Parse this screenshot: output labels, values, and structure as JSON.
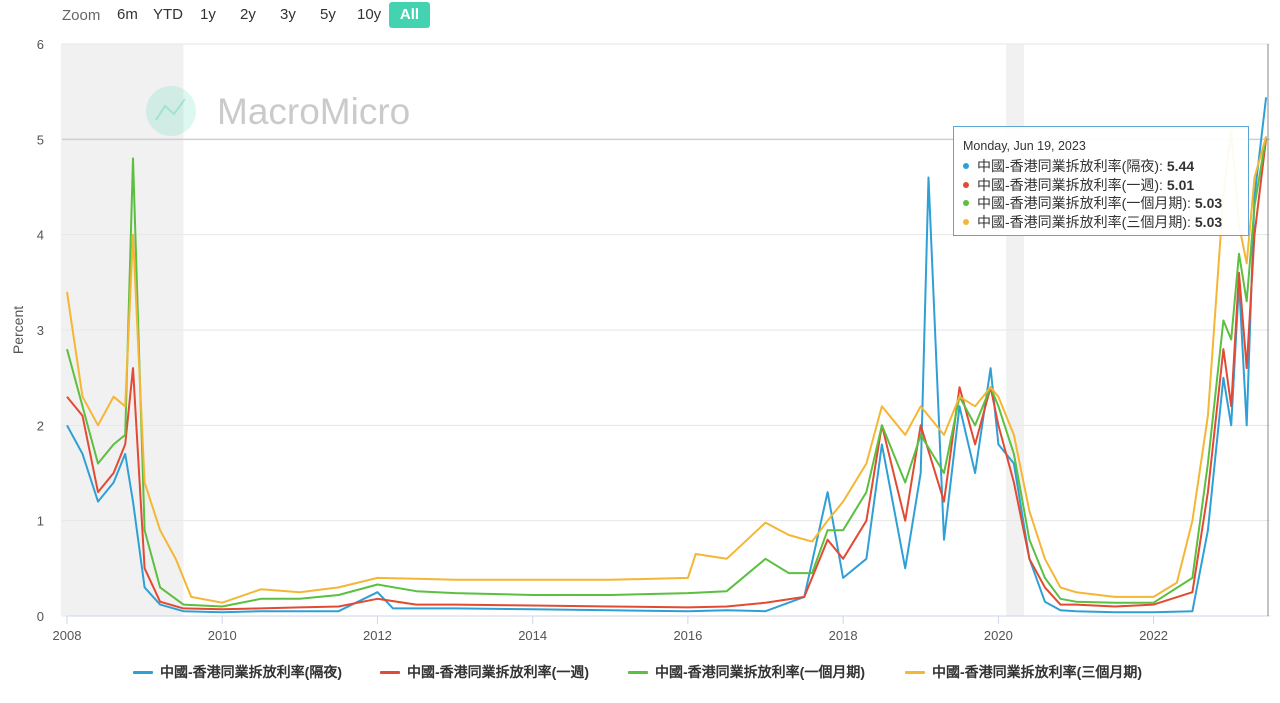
{
  "zoom": {
    "label": "Zoom",
    "buttons": [
      "6m",
      "YTD",
      "1y",
      "2y",
      "3y",
      "5y",
      "10y",
      "All"
    ],
    "active": "All",
    "active_color": "#44d3b0"
  },
  "watermark": "MacroMicro",
  "tooltip": {
    "date": "Monday, Jun 19, 2023",
    "rows": [
      {
        "label": "中國-香港同業拆放利率(隔夜):",
        "value": "5.44"
      },
      {
        "label": "中國-香港同業拆放利率(一週):",
        "value": "5.01"
      },
      {
        "label": "中國-香港同業拆放利率(一個月期):",
        "value": "5.03"
      },
      {
        "label": "中國-香港同業拆放利率(三個月期):",
        "value": "5.03"
      }
    ]
  },
  "chart_data": {
    "type": "line",
    "ylabel": "Percent",
    "ylim": [
      0,
      6
    ],
    "yticks": [
      "0",
      "1",
      "2",
      "3",
      "4",
      "5",
      "6"
    ],
    "xlim": [
      2008,
      2023.5
    ],
    "xticks": [
      "2008",
      "2010",
      "2012",
      "2014",
      "2016",
      "2018",
      "2020",
      "2022"
    ],
    "grid": true,
    "legend_position": "bottom",
    "recession_bands": [
      [
        2007.92,
        2009.5
      ],
      [
        2020.1,
        2020.33
      ]
    ],
    "reference_line": 5,
    "series": [
      {
        "name": "中國-香港同業拆放利率(隔夜)",
        "color": "#2fa0d6",
        "points": [
          [
            2008.0,
            2.0
          ],
          [
            2008.2,
            1.7
          ],
          [
            2008.4,
            1.2
          ],
          [
            2008.6,
            1.4
          ],
          [
            2008.75,
            1.7
          ],
          [
            2008.85,
            1.2
          ],
          [
            2009.0,
            0.3
          ],
          [
            2009.2,
            0.12
          ],
          [
            2009.5,
            0.05
          ],
          [
            2010.0,
            0.04
          ],
          [
            2010.5,
            0.05
          ],
          [
            2011.0,
            0.05
          ],
          [
            2011.5,
            0.05
          ],
          [
            2012.0,
            0.25
          ],
          [
            2012.2,
            0.08
          ],
          [
            2013.0,
            0.08
          ],
          [
            2014.0,
            0.07
          ],
          [
            2015.0,
            0.06
          ],
          [
            2016.0,
            0.05
          ],
          [
            2016.5,
            0.06
          ],
          [
            2017.0,
            0.05
          ],
          [
            2017.5,
            0.2
          ],
          [
            2017.8,
            1.3
          ],
          [
            2018.0,
            0.4
          ],
          [
            2018.3,
            0.6
          ],
          [
            2018.5,
            1.8
          ],
          [
            2018.8,
            0.5
          ],
          [
            2019.0,
            1.5
          ],
          [
            2019.1,
            4.6
          ],
          [
            2019.3,
            0.8
          ],
          [
            2019.5,
            2.2
          ],
          [
            2019.7,
            1.5
          ],
          [
            2019.9,
            2.6
          ],
          [
            2020.0,
            1.8
          ],
          [
            2020.2,
            1.6
          ],
          [
            2020.4,
            0.6
          ],
          [
            2020.6,
            0.15
          ],
          [
            2020.8,
            0.06
          ],
          [
            2021.0,
            0.05
          ],
          [
            2021.5,
            0.04
          ],
          [
            2022.0,
            0.04
          ],
          [
            2022.5,
            0.05
          ],
          [
            2022.7,
            0.9
          ],
          [
            2022.9,
            2.5
          ],
          [
            2023.0,
            2.0
          ],
          [
            2023.1,
            3.5
          ],
          [
            2023.2,
            2.0
          ],
          [
            2023.3,
            4.4
          ],
          [
            2023.45,
            5.44
          ]
        ]
      },
      {
        "name": "中國-香港同業拆放利率(一週)",
        "color": "#e24a33",
        "points": [
          [
            2008.0,
            2.3
          ],
          [
            2008.2,
            2.1
          ],
          [
            2008.4,
            1.3
          ],
          [
            2008.6,
            1.5
          ],
          [
            2008.75,
            1.8
          ],
          [
            2008.85,
            2.6
          ],
          [
            2009.0,
            0.5
          ],
          [
            2009.2,
            0.15
          ],
          [
            2009.5,
            0.08
          ],
          [
            2010.0,
            0.07
          ],
          [
            2010.5,
            0.08
          ],
          [
            2011.0,
            0.09
          ],
          [
            2011.5,
            0.1
          ],
          [
            2012.0,
            0.18
          ],
          [
            2012.5,
            0.12
          ],
          [
            2013.0,
            0.12
          ],
          [
            2014.0,
            0.11
          ],
          [
            2015.0,
            0.1
          ],
          [
            2016.0,
            0.09
          ],
          [
            2016.5,
            0.1
          ],
          [
            2017.0,
            0.14
          ],
          [
            2017.5,
            0.2
          ],
          [
            2017.8,
            0.8
          ],
          [
            2018.0,
            0.6
          ],
          [
            2018.3,
            1.0
          ],
          [
            2018.5,
            2.0
          ],
          [
            2018.8,
            1.0
          ],
          [
            2019.0,
            2.0
          ],
          [
            2019.3,
            1.2
          ],
          [
            2019.5,
            2.4
          ],
          [
            2019.7,
            1.8
          ],
          [
            2019.9,
            2.4
          ],
          [
            2020.0,
            2.0
          ],
          [
            2020.2,
            1.4
          ],
          [
            2020.4,
            0.6
          ],
          [
            2020.6,
            0.3
          ],
          [
            2020.8,
            0.12
          ],
          [
            2021.0,
            0.12
          ],
          [
            2021.5,
            0.1
          ],
          [
            2022.0,
            0.12
          ],
          [
            2022.5,
            0.25
          ],
          [
            2022.7,
            1.3
          ],
          [
            2022.9,
            2.8
          ],
          [
            2023.0,
            2.2
          ],
          [
            2023.1,
            3.6
          ],
          [
            2023.2,
            2.6
          ],
          [
            2023.3,
            4.0
          ],
          [
            2023.45,
            5.01
          ]
        ]
      },
      {
        "name": "中國-香港同業拆放利率(一個月期)",
        "color": "#5bbf3f",
        "points": [
          [
            2008.0,
            2.8
          ],
          [
            2008.2,
            2.2
          ],
          [
            2008.4,
            1.6
          ],
          [
            2008.6,
            1.8
          ],
          [
            2008.75,
            1.9
          ],
          [
            2008.85,
            4.8
          ],
          [
            2009.0,
            0.9
          ],
          [
            2009.2,
            0.3
          ],
          [
            2009.5,
            0.12
          ],
          [
            2010.0,
            0.1
          ],
          [
            2010.5,
            0.18
          ],
          [
            2011.0,
            0.18
          ],
          [
            2011.5,
            0.22
          ],
          [
            2012.0,
            0.33
          ],
          [
            2012.5,
            0.26
          ],
          [
            2013.0,
            0.24
          ],
          [
            2014.0,
            0.22
          ],
          [
            2015.0,
            0.22
          ],
          [
            2016.0,
            0.24
          ],
          [
            2016.5,
            0.26
          ],
          [
            2017.0,
            0.6
          ],
          [
            2017.3,
            0.45
          ],
          [
            2017.6,
            0.45
          ],
          [
            2017.8,
            0.9
          ],
          [
            2018.0,
            0.9
          ],
          [
            2018.3,
            1.3
          ],
          [
            2018.5,
            2.0
          ],
          [
            2018.8,
            1.4
          ],
          [
            2019.0,
            1.9
          ],
          [
            2019.3,
            1.5
          ],
          [
            2019.5,
            2.3
          ],
          [
            2019.7,
            2.0
          ],
          [
            2019.9,
            2.4
          ],
          [
            2020.0,
            2.2
          ],
          [
            2020.2,
            1.7
          ],
          [
            2020.4,
            0.8
          ],
          [
            2020.6,
            0.4
          ],
          [
            2020.8,
            0.18
          ],
          [
            2021.0,
            0.15
          ],
          [
            2021.5,
            0.14
          ],
          [
            2022.0,
            0.14
          ],
          [
            2022.5,
            0.4
          ],
          [
            2022.7,
            1.6
          ],
          [
            2022.9,
            3.1
          ],
          [
            2023.0,
            2.9
          ],
          [
            2023.1,
            3.8
          ],
          [
            2023.2,
            3.3
          ],
          [
            2023.3,
            4.3
          ],
          [
            2023.45,
            5.03
          ]
        ]
      },
      {
        "name": "中國-香港同業拆放利率(三個月期)",
        "color": "#f4b634",
        "points": [
          [
            2008.0,
            3.4
          ],
          [
            2008.2,
            2.3
          ],
          [
            2008.4,
            2.0
          ],
          [
            2008.6,
            2.3
          ],
          [
            2008.75,
            2.2
          ],
          [
            2008.85,
            4.0
          ],
          [
            2009.0,
            1.4
          ],
          [
            2009.2,
            0.9
          ],
          [
            2009.4,
            0.6
          ],
          [
            2009.6,
            0.2
          ],
          [
            2010.0,
            0.14
          ],
          [
            2010.5,
            0.28
          ],
          [
            2011.0,
            0.25
          ],
          [
            2011.5,
            0.3
          ],
          [
            2012.0,
            0.4
          ],
          [
            2012.5,
            0.39
          ],
          [
            2013.0,
            0.38
          ],
          [
            2014.0,
            0.38
          ],
          [
            2015.0,
            0.38
          ],
          [
            2016.0,
            0.4
          ],
          [
            2016.1,
            0.65
          ],
          [
            2016.5,
            0.6
          ],
          [
            2017.0,
            0.98
          ],
          [
            2017.3,
            0.85
          ],
          [
            2017.6,
            0.78
          ],
          [
            2017.8,
            1.0
          ],
          [
            2018.0,
            1.2
          ],
          [
            2018.3,
            1.6
          ],
          [
            2018.5,
            2.2
          ],
          [
            2018.8,
            1.9
          ],
          [
            2019.0,
            2.2
          ],
          [
            2019.3,
            1.9
          ],
          [
            2019.5,
            2.3
          ],
          [
            2019.7,
            2.2
          ],
          [
            2019.9,
            2.4
          ],
          [
            2020.0,
            2.3
          ],
          [
            2020.2,
            1.9
          ],
          [
            2020.4,
            1.1
          ],
          [
            2020.6,
            0.6
          ],
          [
            2020.8,
            0.3
          ],
          [
            2021.0,
            0.25
          ],
          [
            2021.5,
            0.2
          ],
          [
            2022.0,
            0.2
          ],
          [
            2022.3,
            0.35
          ],
          [
            2022.5,
            1.0
          ],
          [
            2022.7,
            2.1
          ],
          [
            2022.9,
            4.4
          ],
          [
            2023.0,
            5.1
          ],
          [
            2023.1,
            4.1
          ],
          [
            2023.2,
            3.7
          ],
          [
            2023.3,
            4.6
          ],
          [
            2023.45,
            5.03
          ]
        ]
      }
    ]
  }
}
